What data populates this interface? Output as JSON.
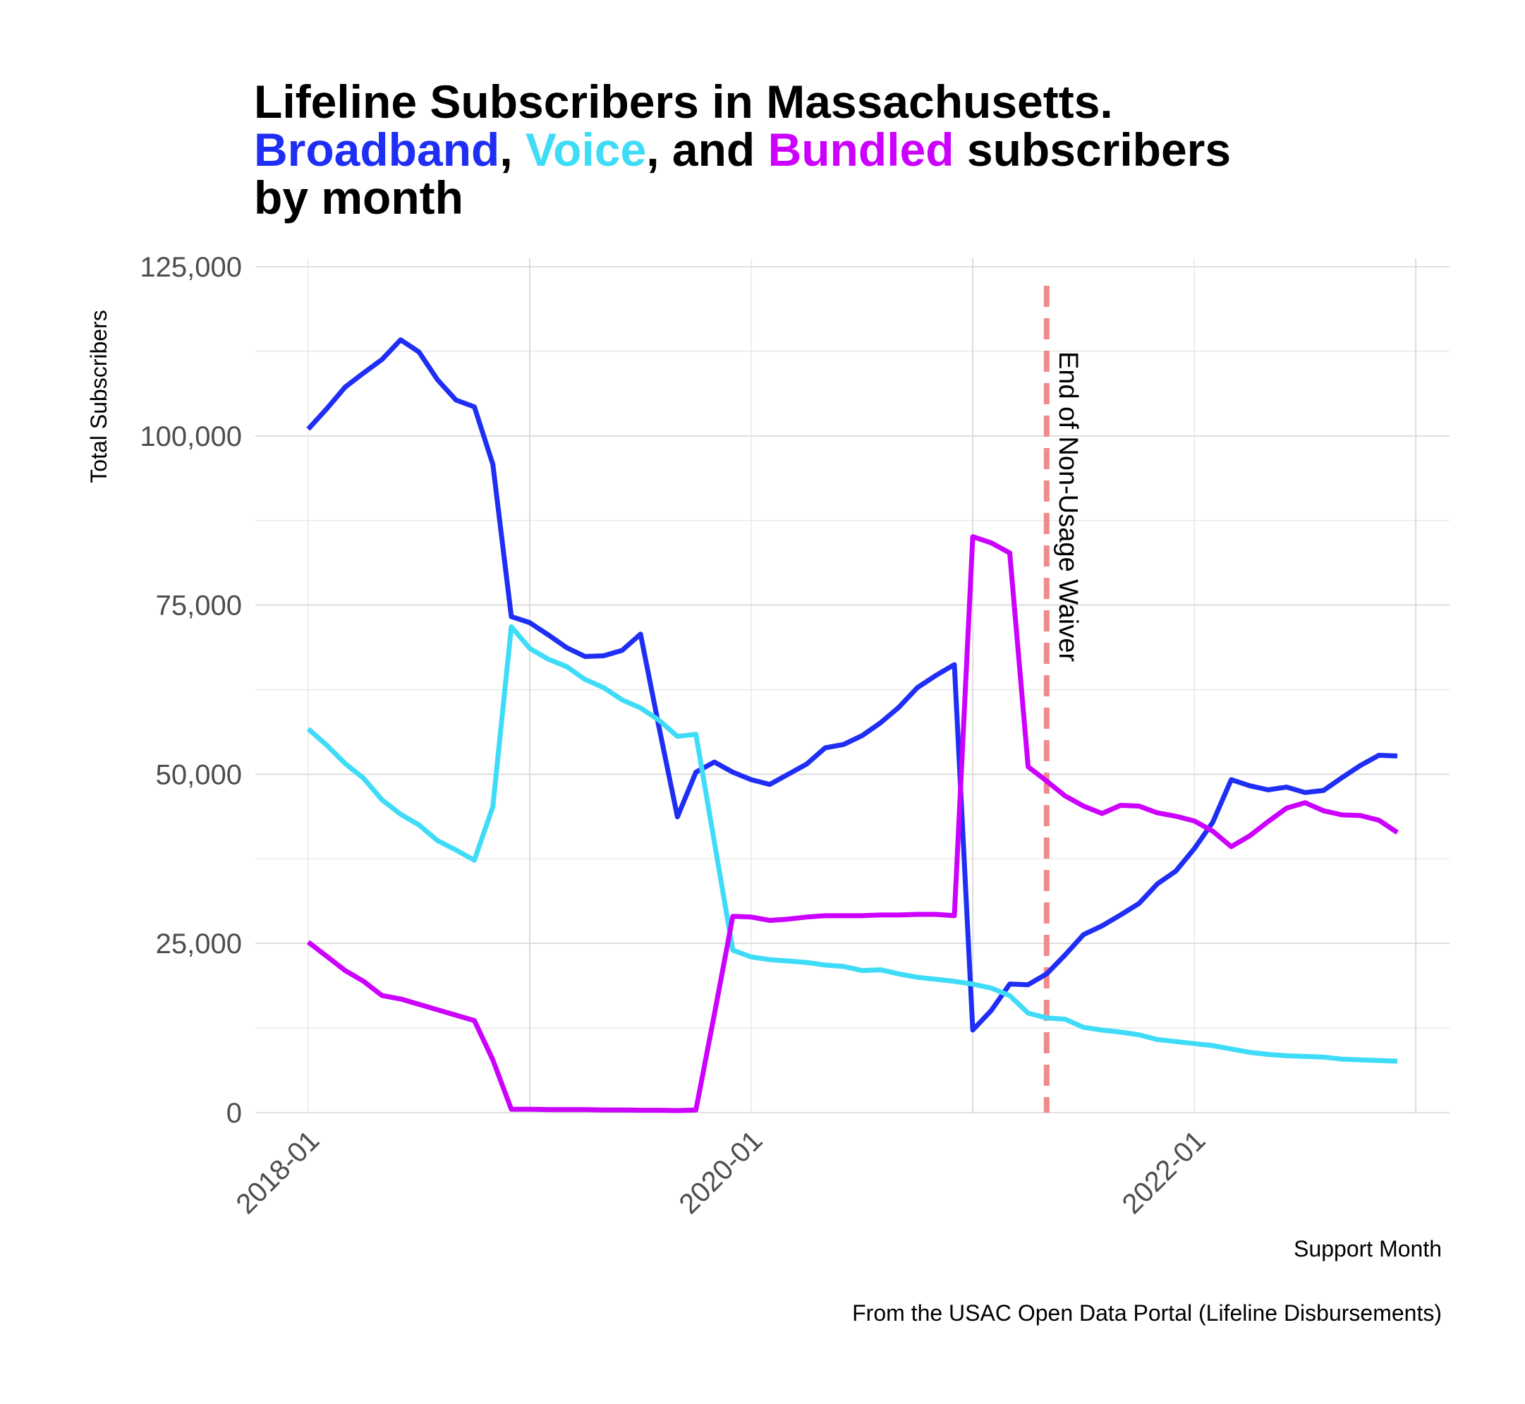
{
  "title": {
    "line1": "Lifeline Subscribers in Massachusetts.",
    "line2_broadband": "Broadband",
    "line2_sep1": ",",
    "line2_voice": "Voice",
    "line2_mid": ", and",
    "line2_bundled": "Bundled",
    "line2_end": "subscribers",
    "line3": "by month"
  },
  "colors": {
    "broadband": "#1f2ef5",
    "voice": "#3fdcf7",
    "bundled": "#cc00ff",
    "annotation_line": "#f08b8b",
    "grid": "#d9d9d9"
  },
  "caption": "From the USAC Open Data Portal (Lifeline Disbursements)",
  "chart_data": {
    "type": "line",
    "xlabel": "Support Month",
    "ylabel": "Total Subscribers",
    "ylim": [
      0,
      125000
    ],
    "y_ticks": [
      0,
      25000,
      50000,
      75000,
      100000,
      125000
    ],
    "y_tick_labels": [
      "0",
      "25,000",
      "50,000",
      "75,000",
      "100,000",
      "125,000"
    ],
    "x_ticks": [
      "2018-01",
      "2020-01",
      "2022-01"
    ],
    "x_start": "2018-01",
    "x_end": "2022-12",
    "grid": true,
    "legend": "none (series colored in title)",
    "annotation": {
      "x": "2021-05",
      "label": "End of Non-Usage Waiver",
      "style": "dashed vertical line"
    },
    "series": [
      {
        "name": "Broadband",
        "color": "#1f2ef5",
        "x": [
          "2018-01",
          "2018-02",
          "2018-03",
          "2018-04",
          "2018-05",
          "2018-06",
          "2018-07",
          "2018-08",
          "2018-09",
          "2018-10",
          "2018-11",
          "2018-12",
          "2019-01",
          "2019-02",
          "2019-03",
          "2019-04",
          "2019-05",
          "2019-06",
          "2019-07",
          "2019-08",
          "2019-09",
          "2019-10",
          "2019-11",
          "2019-12",
          "2020-01",
          "2020-02",
          "2020-03",
          "2020-04",
          "2020-05",
          "2020-06",
          "2020-07",
          "2020-08",
          "2020-09",
          "2020-10",
          "2020-11",
          "2020-12",
          "2021-01",
          "2021-02",
          "2021-03",
          "2021-04",
          "2021-05",
          "2021-06",
          "2021-07",
          "2021-08",
          "2021-09",
          "2021-10",
          "2021-11",
          "2021-12",
          "2022-01",
          "2022-02",
          "2022-03",
          "2022-04",
          "2022-05",
          "2022-06",
          "2022-07",
          "2022-08",
          "2022-09",
          "2022-10",
          "2022-11",
          "2022-12"
        ],
        "values": [
          101000,
          104000,
          107200,
          109300,
          111300,
          114200,
          112400,
          108300,
          105300,
          104300,
          95800,
          73300,
          72400,
          70600,
          68700,
          67400,
          67500,
          68300,
          70700,
          57000,
          43700,
          50300,
          51800,
          50300,
          49200,
          48500,
          50000,
          51500,
          53900,
          54400,
          55700,
          57600,
          59900,
          62800,
          64600,
          66200,
          12200,
          15100,
          19000,
          18900,
          20500,
          23300,
          26300,
          27600,
          29200,
          30900,
          33800,
          35700,
          39000,
          42900,
          49200,
          48300,
          47700,
          48100,
          47300,
          47600,
          49500,
          51300,
          52800,
          52700
        ]
      },
      {
        "name": "Voice",
        "color": "#3fdcf7",
        "x": [
          "2018-01",
          "2018-02",
          "2018-03",
          "2018-04",
          "2018-05",
          "2018-06",
          "2018-07",
          "2018-08",
          "2018-09",
          "2018-10",
          "2018-11",
          "2018-12",
          "2019-01",
          "2019-02",
          "2019-03",
          "2019-04",
          "2019-05",
          "2019-06",
          "2019-07",
          "2019-08",
          "2019-09",
          "2019-10",
          "2019-11",
          "2019-12",
          "2020-01",
          "2020-02",
          "2020-03",
          "2020-04",
          "2020-05",
          "2020-06",
          "2020-07",
          "2020-08",
          "2020-09",
          "2020-10",
          "2020-11",
          "2020-12",
          "2021-01",
          "2021-02",
          "2021-03",
          "2021-04",
          "2021-05",
          "2021-06",
          "2021-07",
          "2021-08",
          "2021-09",
          "2021-10",
          "2021-11",
          "2021-12",
          "2022-01",
          "2022-02",
          "2022-03",
          "2022-04",
          "2022-05",
          "2022-06",
          "2022-07",
          "2022-08",
          "2022-09",
          "2022-10",
          "2022-11",
          "2022-12"
        ],
        "values": [
          56700,
          54300,
          51600,
          49400,
          46200,
          44100,
          42500,
          40200,
          38800,
          37300,
          45200,
          71800,
          68600,
          67000,
          65900,
          64000,
          62800,
          61000,
          59800,
          58000,
          55600,
          55900,
          40000,
          24000,
          23000,
          22600,
          22400,
          22200,
          21800,
          21600,
          21000,
          21100,
          20500,
          20000,
          19700,
          19400,
          19000,
          18400,
          17300,
          14700,
          14000,
          13800,
          12600,
          12200,
          11900,
          11500,
          10800,
          10500,
          10200,
          9900,
          9400,
          8900,
          8600,
          8400,
          8300,
          8200,
          7900,
          7800,
          7700,
          7600
        ]
      },
      {
        "name": "Bundled",
        "color": "#cc00ff",
        "x": [
          "2018-01",
          "2018-02",
          "2018-03",
          "2018-04",
          "2018-05",
          "2018-06",
          "2018-07",
          "2018-08",
          "2018-09",
          "2018-10",
          "2018-11",
          "2018-12",
          "2019-01",
          "2019-02",
          "2019-03",
          "2019-04",
          "2019-05",
          "2019-06",
          "2019-07",
          "2019-08",
          "2019-09",
          "2019-10",
          "2019-11",
          "2019-12",
          "2020-01",
          "2020-02",
          "2020-03",
          "2020-04",
          "2020-05",
          "2020-06",
          "2020-07",
          "2020-08",
          "2020-09",
          "2020-10",
          "2020-11",
          "2020-12",
          "2021-01",
          "2021-02",
          "2021-03",
          "2021-04",
          "2021-05",
          "2021-06",
          "2021-07",
          "2021-08",
          "2021-09",
          "2021-10",
          "2021-11",
          "2021-12",
          "2022-01",
          "2022-02",
          "2022-03",
          "2022-04",
          "2022-05",
          "2022-06",
          "2022-07",
          "2022-08",
          "2022-09",
          "2022-10",
          "2022-11",
          "2022-12"
        ],
        "values": [
          25200,
          23100,
          21000,
          19400,
          17300,
          16800,
          16000,
          15200,
          14400,
          13600,
          7800,
          500,
          500,
          450,
          450,
          450,
          400,
          400,
          350,
          350,
          300,
          400,
          14500,
          29000,
          28900,
          28400,
          28600,
          28900,
          29100,
          29100,
          29100,
          29200,
          29200,
          29300,
          29300,
          29100,
          85100,
          84200,
          82700,
          51100,
          49000,
          46800,
          45300,
          44200,
          45400,
          45300,
          44300,
          43800,
          43100,
          41600,
          39300,
          40900,
          43000,
          45000,
          45800,
          44600,
          44000,
          43900,
          43200,
          41400
        ]
      }
    ]
  }
}
